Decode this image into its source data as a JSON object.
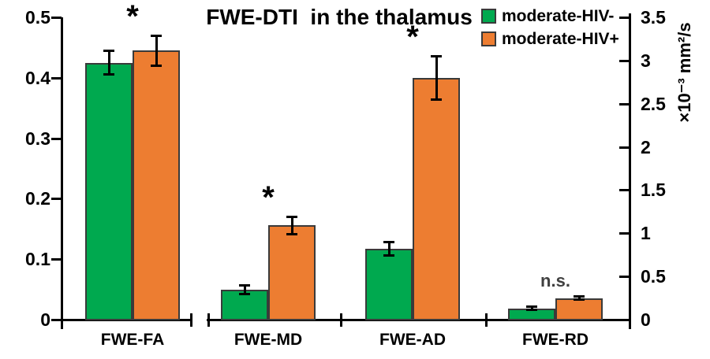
{
  "title": "FWE-DTI  in the thalamus",
  "legend": {
    "position": "top-right",
    "items": [
      {
        "label": "moderate-HIV-",
        "color": "#00A94F"
      },
      {
        "label": "moderate-HIV+",
        "color": "#ED7D31"
      }
    ]
  },
  "axes": {
    "left": {
      "tick_labels": [
        "0.5",
        "0.4",
        "0.3",
        "0.2",
        "0.1",
        "0"
      ],
      "range": [
        0,
        0.5
      ]
    },
    "right": {
      "tick_labels": [
        "3.5",
        "3",
        "2.5",
        "2",
        "1.5",
        "1",
        "0.5",
        "0"
      ],
      "range": [
        0,
        3.5
      ],
      "unit": "×10⁻³ mm²/s"
    }
  },
  "chart_data": {
    "type": "bar",
    "title": "FWE-DTI in the thalamus",
    "categories": [
      "FWE-FA",
      "FWE-MD",
      "FWE-AD",
      "FWE-RD"
    ],
    "group_axis": [
      "left",
      "right",
      "right",
      "right"
    ],
    "significance": [
      "*",
      "*",
      "*",
      "n.s."
    ],
    "series": [
      {
        "name": "moderate-HIV-",
        "color": "#00A94F",
        "values": [
          0.425,
          0.35,
          0.82,
          0.13
        ],
        "errors": [
          0.02,
          0.05,
          0.08,
          0.02
        ]
      },
      {
        "name": "moderate-HIV+",
        "color": "#ED7D31",
        "values": [
          0.445,
          1.09,
          2.8,
          0.25
        ],
        "errors": [
          0.025,
          0.1,
          0.25,
          0.02
        ]
      }
    ],
    "left_axis": {
      "range": [
        0,
        0.5
      ],
      "tick_step": 0.1,
      "label": ""
    },
    "right_axis": {
      "range": [
        0,
        3.5
      ],
      "tick_step": 0.5,
      "label": "×10⁻³ mm²/s"
    },
    "grid": false,
    "legend_position": "top-right",
    "bar_border_color": "#3a3a3a",
    "error_bar_color": "#000000",
    "ns_color": "#404040"
  }
}
